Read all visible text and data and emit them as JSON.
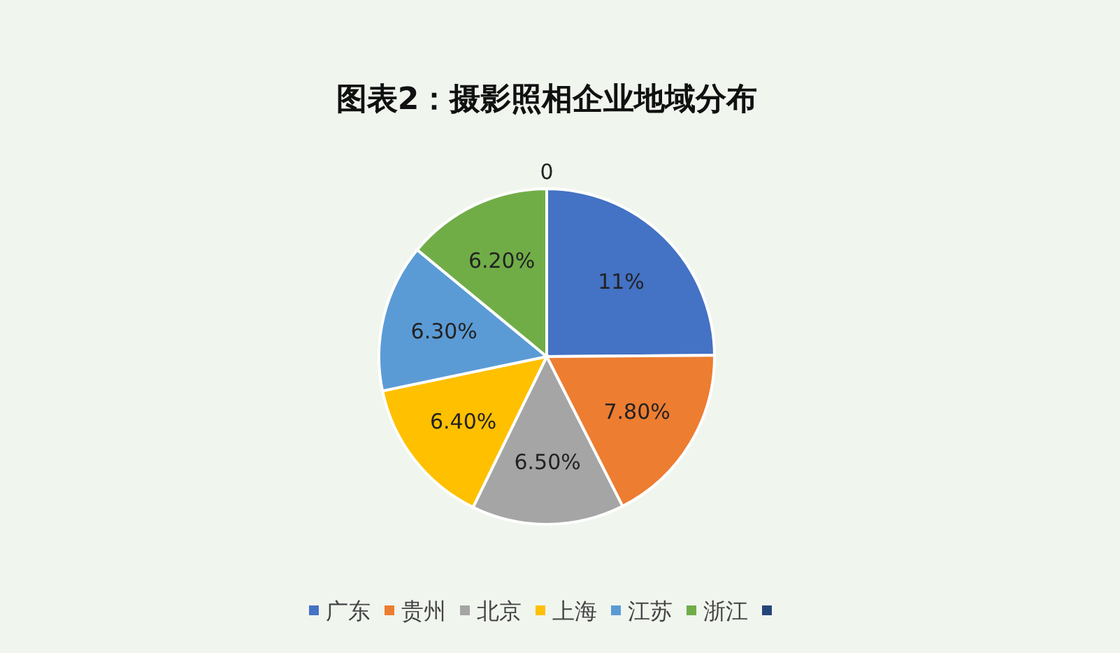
{
  "chart_data": {
    "type": "pie",
    "title": "图表2：摄影照相企业地域分布",
    "categories": [
      "广东",
      "贵州",
      "北京",
      "上海",
      "江苏",
      "浙江",
      null
    ],
    "values": [
      11,
      7.8,
      6.5,
      6.4,
      6.3,
      6.2,
      0
    ],
    "value_labels": [
      "11%",
      "7.80%",
      "6.50%",
      "6.40%",
      "6.30%",
      "6.20%",
      "0"
    ],
    "colors": [
      "#4472c4",
      "#ed7d31",
      "#a5a5a5",
      "#ffc000",
      "#5b9bd5",
      "#70ad47",
      "#264478"
    ],
    "legend": "bottom"
  }
}
